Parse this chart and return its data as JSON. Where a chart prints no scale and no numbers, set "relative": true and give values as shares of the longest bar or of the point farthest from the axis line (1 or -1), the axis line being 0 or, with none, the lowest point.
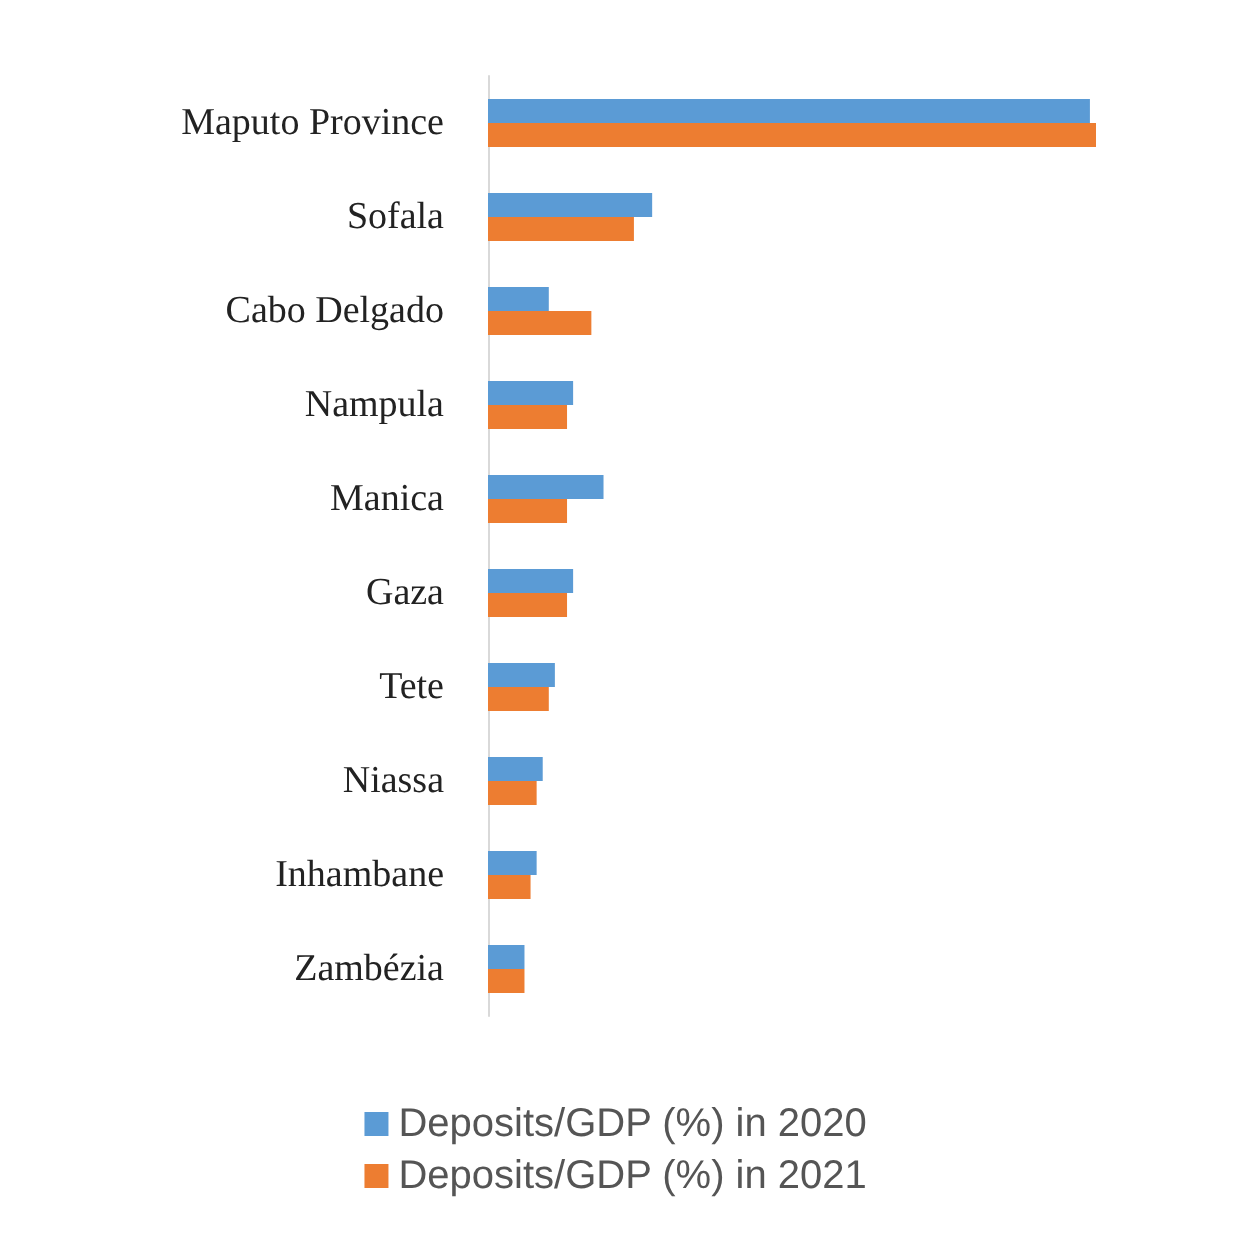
{
  "chart_data": {
    "type": "bar",
    "orientation": "horizontal",
    "relative": true,
    "legend": "bottom",
    "categories": [
      "Maputo Province",
      "Sofala",
      "Cabo Delgado",
      "Nampula",
      "Manica",
      "Gaza",
      "Tete",
      "Niassa",
      "Inhambane",
      "Zambézia"
    ],
    "series": [
      {
        "name": "Deposits/GDP (%) in 2020",
        "color": "#5b9bd5",
        "values": [
          0.99,
          0.27,
          0.1,
          0.14,
          0.19,
          0.14,
          0.11,
          0.09,
          0.08,
          0.06
        ]
      },
      {
        "name": "Deposits/GDP (%) in 2021",
        "color": "#ed7d31",
        "values": [
          1,
          0.24,
          0.17,
          0.13,
          0.13,
          0.13,
          0.1,
          0.08,
          0.07,
          0.06
        ]
      }
    ]
  }
}
